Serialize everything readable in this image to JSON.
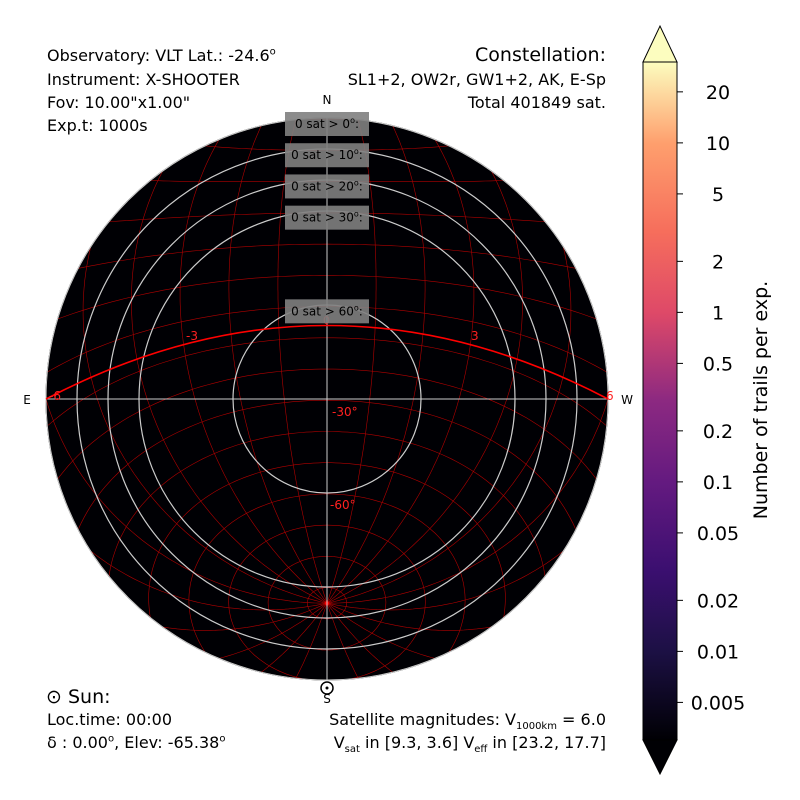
{
  "header_left": {
    "line1": "Observatory: VLT Lat.: -24.6",
    "line1_sup": "o",
    "line2": "Instrument: X-SHOOTER",
    "line3": "Fov: 10.00\"x1.00\"",
    "line4": "Exp.t: 1000s"
  },
  "header_right": {
    "title": "Constellation:",
    "line2": "SL1+2, OW2r, GW1+2, AK, E-Sp",
    "line3": "Total 401849 sat."
  },
  "footer_left": {
    "sun_symbol": "⊙",
    "sun_label": "Sun:",
    "loc_time": "Loc.time: 00:00",
    "decl_prefix": "δ : 0.00",
    "decl_sup": "o",
    "elev": ", Elev: -65.38",
    "elev_sup": "o"
  },
  "footer_right": {
    "mag_prefix": "Satellite magnitudes: V",
    "mag_sub": "1000km",
    "mag_suffix": " = 6.0",
    "vsat_prefix": "V",
    "vsat_sub": "sat",
    "vsat_text": " in [9.3, 3.6]  V",
    "veff_sub": "eff",
    "veff_text": " in [23.2, 17.7]"
  },
  "chart_data": {
    "type": "heatmap",
    "projection": "polar-sky",
    "compass": {
      "north": "N",
      "south": "S",
      "east": "E",
      "west": "W"
    },
    "altitude_circles_deg": [
      0,
      10,
      20,
      30,
      60
    ],
    "altitude_boxes": [
      {
        "altitude": 0,
        "label": "0 sat > 0",
        "sup": "o"
      },
      {
        "altitude": 10,
        "label": "0 sat > 10",
        "sup": "o"
      },
      {
        "altitude": 20,
        "label": "0 sat > 20",
        "sup": "o"
      },
      {
        "altitude": 30,
        "label": "0 sat > 30",
        "sup": "o"
      },
      {
        "altitude": 60,
        "label": "0 sat > 60",
        "sup": "o"
      }
    ],
    "dec_labels": [
      "-30°",
      "-60°"
    ],
    "ha_labels": [
      "-6",
      "-3",
      "3",
      "6"
    ],
    "values": "all zero (no satellite trails)",
    "colorbar": {
      "label": "Number of trails per exp.",
      "scale": "log",
      "range": [
        0.003,
        30
      ],
      "ticks": [
        20,
        10,
        5,
        2,
        1,
        0.5,
        0.2,
        0.1,
        0.05,
        0.02,
        0.01,
        0.005
      ],
      "tick_labels": [
        "20",
        "10",
        "5",
        "2",
        "1",
        "0.5",
        "0.2",
        "0.1",
        "0.05",
        "0.02",
        "0.01",
        "0.005"
      ],
      "colormap": "magma",
      "extend": "both"
    }
  }
}
